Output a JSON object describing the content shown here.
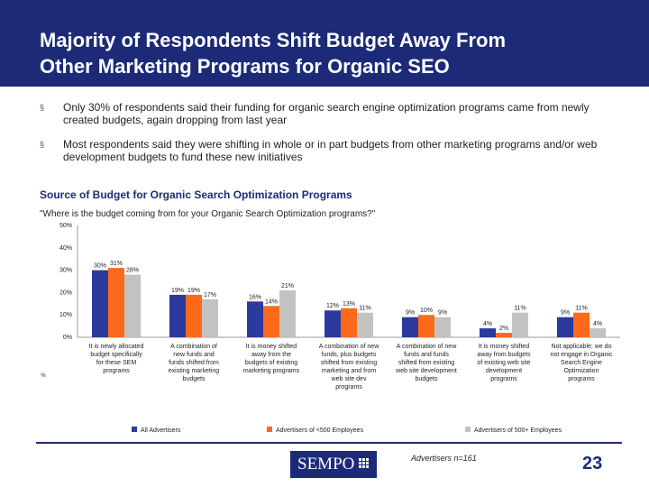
{
  "slide": {
    "title_line1": "Majority of Respondents Shift Budget Away From",
    "title_line2": "Other Marketing Programs for Organic SEO",
    "bullets": [
      "Only 30% of respondents said their funding for organic search engine optimization programs came from newly created budgets, again dropping from last year",
      "Most respondents said they were shifting in whole or in part budgets from other marketing programs and/or web development budgets to fund these new initiatives"
    ],
    "bullet_marker": "§",
    "section_title": "Source of Budget for Organic Search Optimization Programs",
    "question": "\"Where is the budget coming from for your Organic Search Optimization programs?\"",
    "note": "Advertisers n=161",
    "page_number": "23",
    "logo_text": "SEMPO",
    "colors": {
      "header": "#1c2a78",
      "series_all": "#2b3a9c",
      "series_small": "#ff6a1a",
      "series_large": "#c2c2c2"
    }
  },
  "chart_data": {
    "type": "bar",
    "title": "Source of Budget for Organic Search Optimization Programs",
    "ylim": [
      0,
      50
    ],
    "yticks": [
      "0%",
      "10%",
      "20%",
      "30%",
      "40%",
      "50%"
    ],
    "grid": false,
    "legend_position": "bottom",
    "stray_label": "%",
    "categories": [
      [
        "It is newly allocated",
        "budget specifically",
        "for these SEM",
        "programs"
      ],
      [
        "A combination of",
        "new funds and",
        "funds shifted from",
        "existing marketing",
        "budgets"
      ],
      [
        "It is money shifted",
        "away from the",
        "budgets of existing",
        "marketing programs"
      ],
      [
        "A combination of new",
        "funds, plus budgets",
        "shifted from existing",
        "marketing and from",
        "web site dev",
        "programs"
      ],
      [
        "A combination of new",
        "funds and funds",
        "shifted from existing",
        "web site development",
        "budgets"
      ],
      [
        "It is money shifted",
        "away from budgets",
        "of existing web site",
        "development",
        "programs"
      ],
      [
        "Not applicable; we do",
        "not engage in Organic",
        "Search Engine",
        "Optimization",
        "programs"
      ]
    ],
    "series": [
      {
        "name": "All Advertisers",
        "values": [
          30,
          19,
          16,
          12,
          9,
          4,
          9
        ],
        "labels": [
          "30%",
          "19%",
          "16%",
          "12%",
          "9%",
          "4%",
          "9%"
        ]
      },
      {
        "name": "Advertisers of <500 Employees",
        "values": [
          31,
          19,
          14,
          13,
          10,
          2,
          11
        ],
        "labels": [
          "31%",
          "19%",
          "14%",
          "13%",
          "10%",
          "2%",
          "11%"
        ]
      },
      {
        "name": "Advertisers of 500+ Employees",
        "values": [
          28,
          17,
          21,
          11,
          9,
          11,
          4
        ],
        "labels": [
          "28%",
          "17%",
          "21%",
          "11%",
          "9%",
          "11%",
          "4%"
        ]
      }
    ]
  }
}
